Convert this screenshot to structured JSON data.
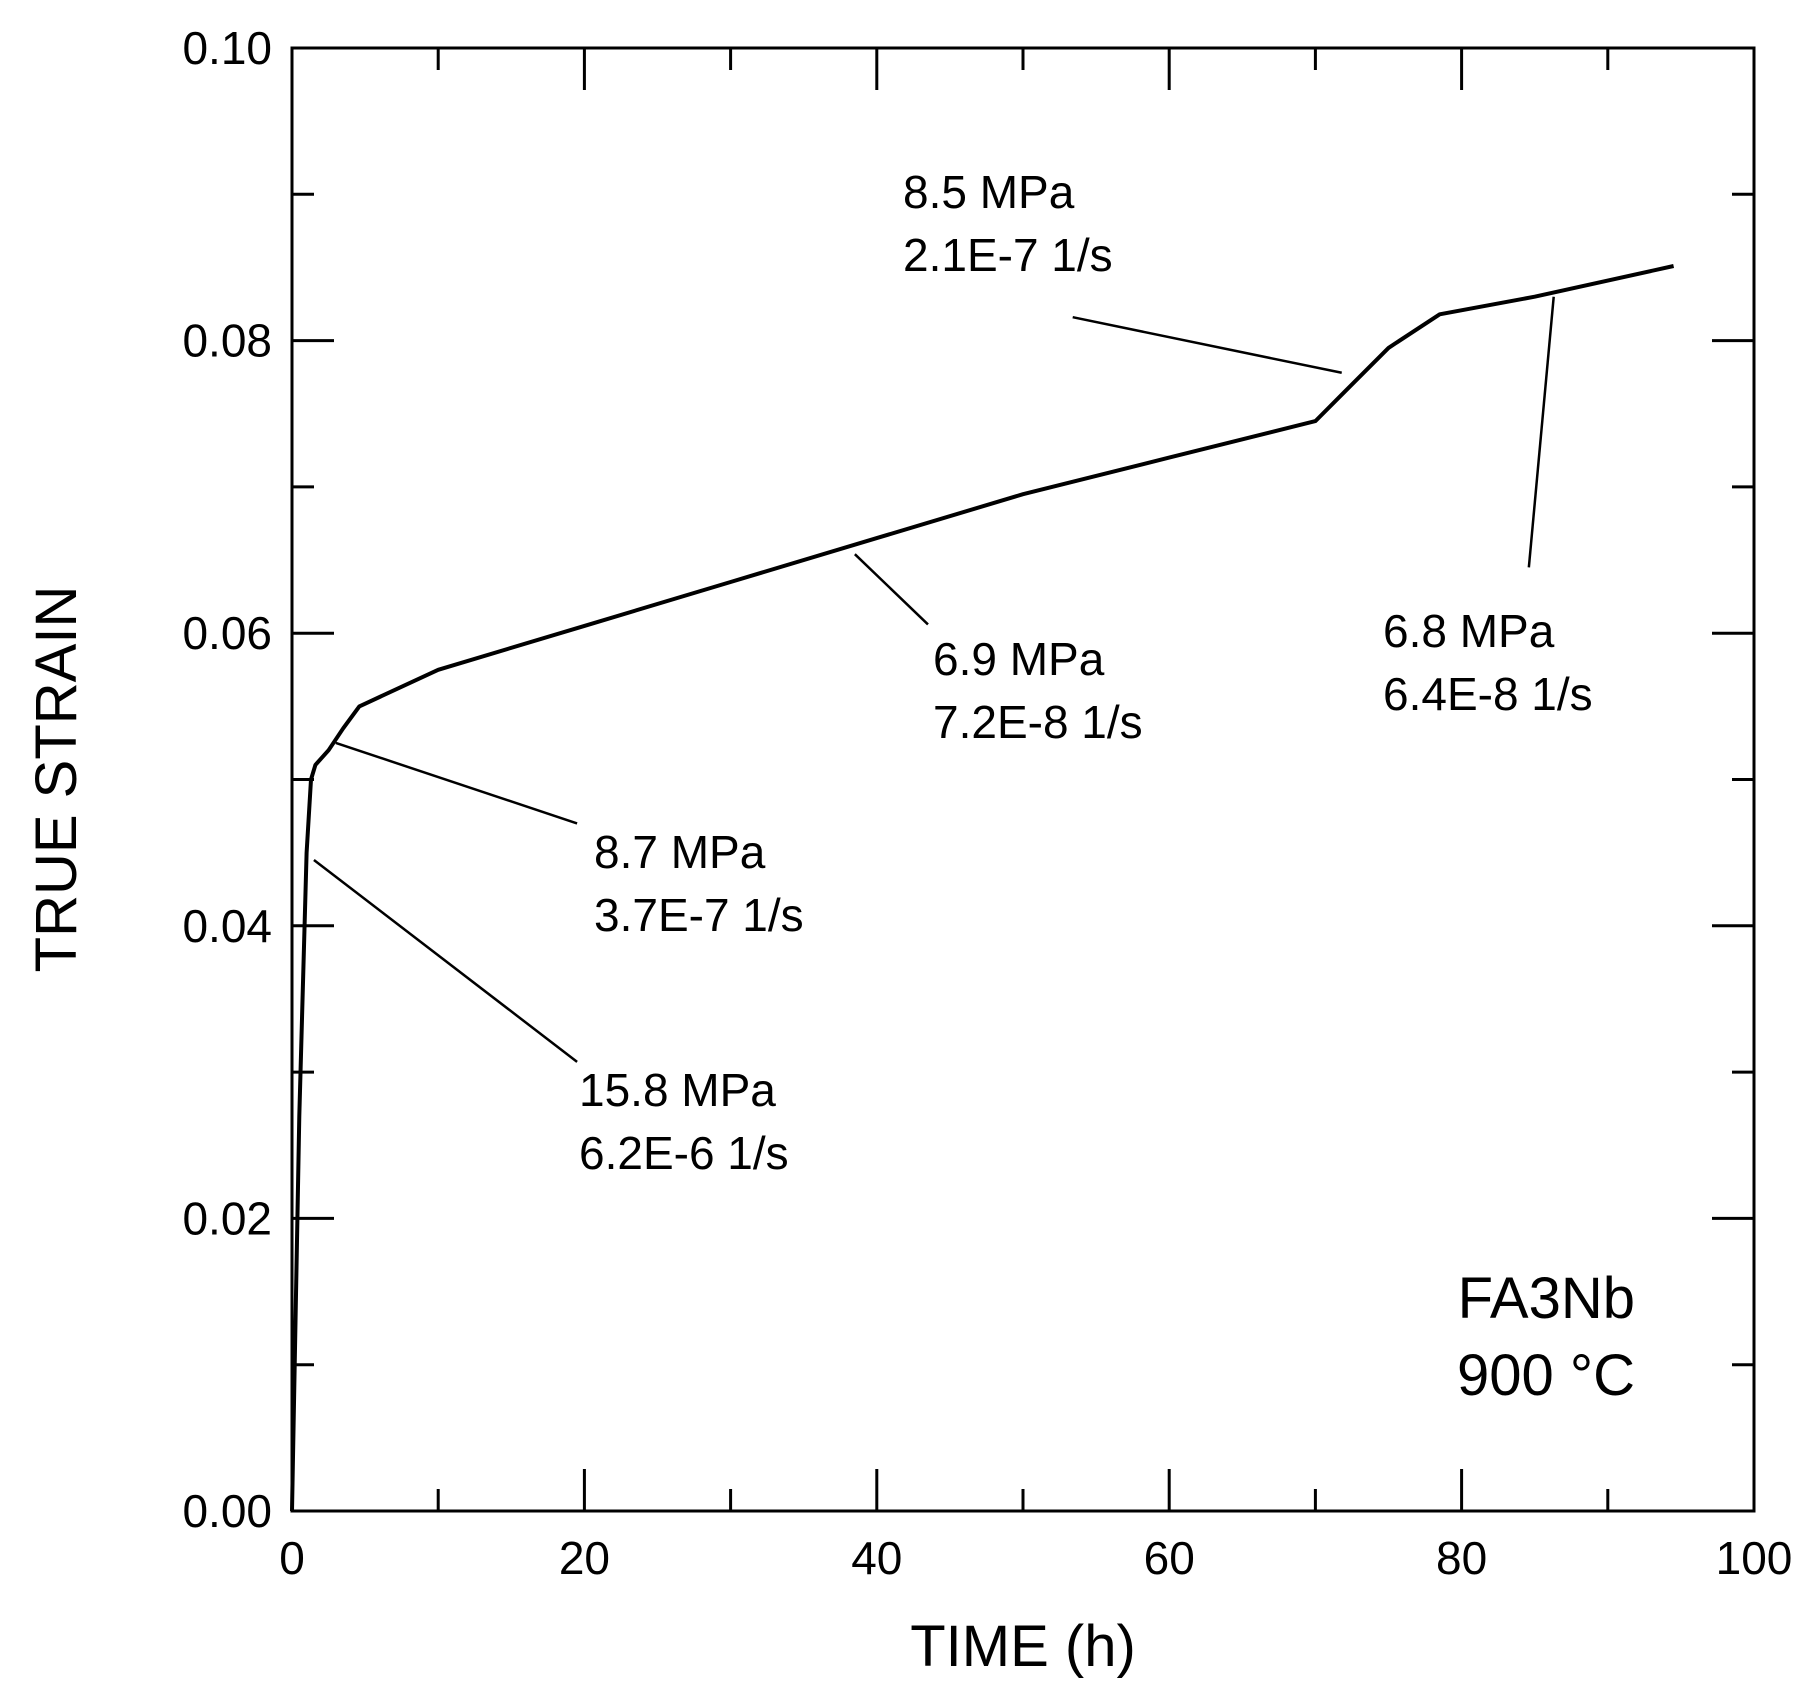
{
  "chart_data": {
    "type": "line",
    "title": "",
    "xlabel": "TIME (h)",
    "ylabel": "TRUE STRAIN",
    "xlim": [
      0,
      100
    ],
    "ylim": [
      0.0,
      0.1
    ],
    "xticks": [
      0,
      20,
      40,
      60,
      80,
      100
    ],
    "yticks": [
      0.0,
      0.02,
      0.04,
      0.06,
      0.08,
      0.1
    ],
    "xtick_labels": [
      "0",
      "20",
      "40",
      "60",
      "80",
      "100"
    ],
    "ytick_labels": [
      "0.00",
      "0.02",
      "0.04",
      "0.06",
      "0.08",
      "0.10"
    ],
    "grid": false,
    "series": [
      {
        "x": [
          0.0,
          0.5,
          1.0,
          1.3,
          1.6,
          2.5,
          3.5,
          4.6,
          10,
          20,
          30,
          40,
          50,
          60,
          70,
          72,
          75,
          78.5,
          85,
          94.5
        ],
        "y": [
          0.0,
          0.027,
          0.045,
          0.05,
          0.051,
          0.052,
          0.0535,
          0.055,
          0.0575,
          0.0605,
          0.0635,
          0.0665,
          0.0695,
          0.072,
          0.0745,
          0.0765,
          0.0795,
          0.0818,
          0.083,
          0.0851
        ]
      }
    ],
    "annotations": [
      {
        "lines": [
          "15.8 MPa",
          "6.2E-6 1/s"
        ],
        "target": [
          1.5,
          0.0445
        ],
        "label_anchor": [
          19.5,
          0.0307
        ]
      },
      {
        "lines": [
          "8.7 MPa",
          "3.7E-7 1/s"
        ],
        "target": [
          3.0,
          0.0525
        ],
        "label_anchor": [
          19.5,
          0.047
        ]
      },
      {
        "lines": [
          "6.9 MPa",
          "7.2E-8 1/s"
        ],
        "target": [
          38.5,
          0.0654
        ],
        "label_anchor": [
          43.5,
          0.0606
        ]
      },
      {
        "lines": [
          "8.5 MPa",
          "2.1E-7 1/s"
        ],
        "target": [
          71.8,
          0.0778
        ],
        "label_anchor": [
          53.4,
          0.0816
        ]
      },
      {
        "lines": [
          "6.8 MPa",
          "6.4E-8 1/s"
        ],
        "target": [
          86.3,
          0.083
        ],
        "label_anchor": [
          84.6,
          0.0645
        ]
      }
    ],
    "specimen": {
      "name": "FA3Nb",
      "temperature": "900 °C"
    }
  }
}
